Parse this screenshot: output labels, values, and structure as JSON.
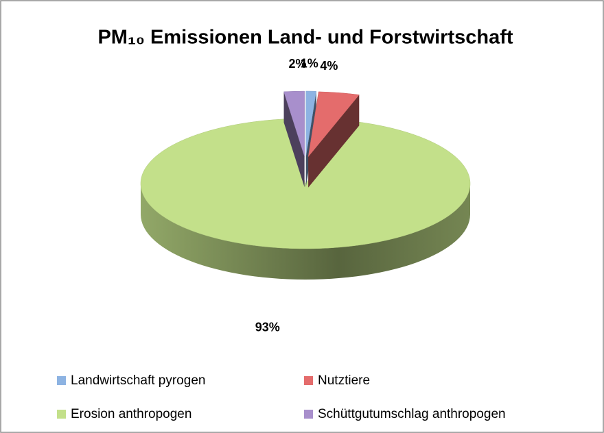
{
  "chart_data": {
    "type": "pie",
    "title": "PM₁₀ Emissionen Land- und Forstwirtschaft",
    "categories": [
      "Landwirtschaft pyrogen",
      "Nutztiere",
      "Erosion anthropogen",
      "Schüttgutumschlag anthropogen"
    ],
    "values": [
      1,
      4,
      93,
      2
    ],
    "value_labels": [
      "1%",
      "4%",
      "93%",
      "2%"
    ],
    "colors": [
      "#8db3e2",
      "#e46c6c",
      "#c3e08a",
      "#a88fcc"
    ],
    "legend": "bottom"
  }
}
